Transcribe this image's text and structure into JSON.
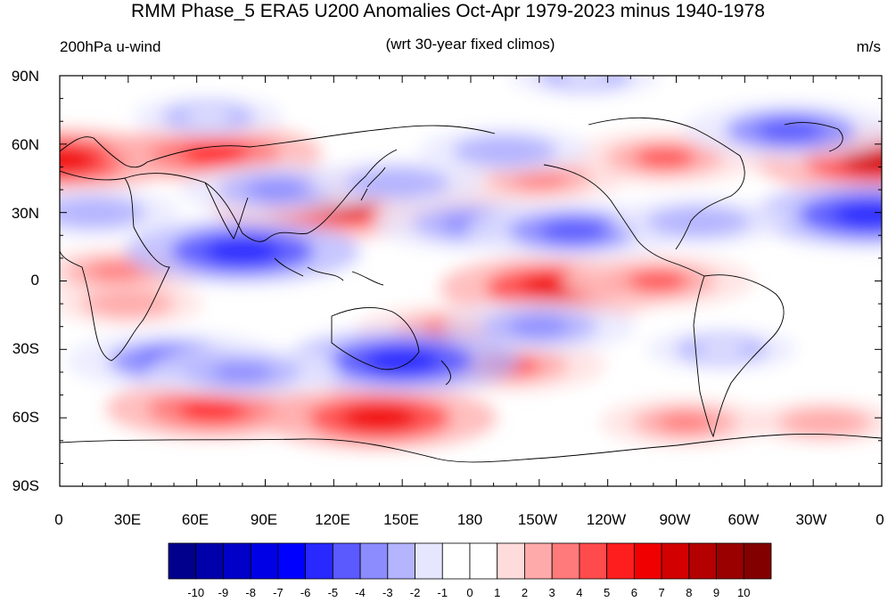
{
  "title": "RMM Phase_5 ERA5 U200 Anomalies Oct-Apr 1979-2023 minus 1940-1978",
  "left_subtitle": "200hPa u-wind",
  "center_subtitle": "(wrt 30-year fixed climos)",
  "units": "m/s",
  "lat_labels": [
    "90N",
    "60N",
    "30N",
    "0",
    "30S",
    "60S",
    "90S"
  ],
  "lon_labels": [
    "0",
    "30E",
    "60E",
    "90E",
    "120E",
    "150E",
    "180",
    "150W",
    "120W",
    "90W",
    "60W",
    "30W",
    "0"
  ],
  "colorbar": {
    "labels": [
      "-10",
      "-9",
      "-8",
      "-7",
      "-6",
      "-5",
      "-4",
      "-3",
      "-2",
      "-1",
      "0",
      "1",
      "2",
      "3",
      "4",
      "5",
      "6",
      "7",
      "8",
      "9",
      "10"
    ],
    "colors": [
      "#00008c",
      "#0000aa",
      "#0000c8",
      "#0000e6",
      "#0000ff",
      "#2828ff",
      "#5a5aff",
      "#8c8cff",
      "#b4b4ff",
      "#e6e6ff",
      "#ffffff",
      "#ffffff",
      "#ffdcdc",
      "#ffaaaa",
      "#ff7a7a",
      "#ff4b4b",
      "#ff1e1e",
      "#f00000",
      "#d20000",
      "#b40000",
      "#9a0000",
      "#820000"
    ]
  },
  "map_data": {
    "type": "contour_map",
    "projection": "cylindrical_equidistant",
    "field": "U200 anomaly",
    "lon_range": [
      0,
      360
    ],
    "lat_range": [
      -90,
      90
    ],
    "features": [
      {
        "lon": 360,
        "lat": 53,
        "value": 7
      },
      {
        "lon": 0,
        "lat": 53,
        "value": 6
      },
      {
        "lon": 68,
        "lat": 56,
        "value": 5
      },
      {
        "lon": 122,
        "lat": 34,
        "value": 7
      },
      {
        "lon": 175,
        "lat": 30,
        "value": 3
      },
      {
        "lon": 265,
        "lat": 54,
        "value": 4
      },
      {
        "lon": 210,
        "lat": 45,
        "value": 3
      },
      {
        "lon": 218,
        "lat": -3,
        "value": 6
      },
      {
        "lon": 262,
        "lat": 0,
        "value": 4
      },
      {
        "lon": 172,
        "lat": -22,
        "value": 4
      },
      {
        "lon": 197,
        "lat": -37,
        "value": 4
      },
      {
        "lon": 67,
        "lat": -56,
        "value": 5
      },
      {
        "lon": 140,
        "lat": -60,
        "value": 6
      },
      {
        "lon": 274,
        "lat": -62,
        "value": 3
      },
      {
        "lon": 335,
        "lat": -62,
        "value": 2
      },
      {
        "lon": 25,
        "lat": 4,
        "value": 3
      },
      {
        "lon": 30,
        "lat": -10,
        "value": 2
      },
      {
        "lon": 355,
        "lat": 29,
        "value": -6
      },
      {
        "lon": 15,
        "lat": 30,
        "value": -3
      },
      {
        "lon": 80,
        "lat": 13,
        "value": -6
      },
      {
        "lon": 95,
        "lat": 40,
        "value": -4
      },
      {
        "lon": 148,
        "lat": 43,
        "value": -3
      },
      {
        "lon": 195,
        "lat": 57,
        "value": -3
      },
      {
        "lon": 180,
        "lat": 25,
        "value": -4
      },
      {
        "lon": 225,
        "lat": 22,
        "value": -5
      },
      {
        "lon": 280,
        "lat": 26,
        "value": -3
      },
      {
        "lon": 320,
        "lat": 66,
        "value": -5
      },
      {
        "lon": 210,
        "lat": -20,
        "value": -4
      },
      {
        "lon": 150,
        "lat": -35,
        "value": -6
      },
      {
        "lon": 50,
        "lat": -35,
        "value": -5
      },
      {
        "lon": 80,
        "lat": -40,
        "value": -4
      },
      {
        "lon": 65,
        "lat": 72,
        "value": -2
      },
      {
        "lon": 290,
        "lat": -30,
        "value": -2
      },
      {
        "lon": 230,
        "lat": 90,
        "value": -2
      }
    ]
  }
}
